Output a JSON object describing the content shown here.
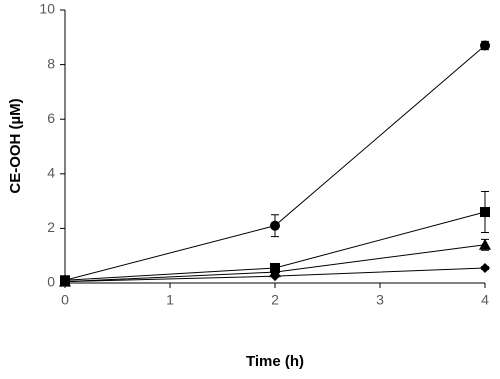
{
  "chart_data": {
    "type": "line",
    "x_label": "Time (h)",
    "y_label": "CE-OOH (µM)",
    "xlim": [
      0,
      4
    ],
    "xticks": [
      0,
      1,
      2,
      3,
      4
    ],
    "ylim": [
      0,
      10
    ],
    "yticks": [
      0,
      2,
      4,
      6,
      8,
      10
    ],
    "grid": false,
    "series": [
      {
        "marker": "circle",
        "color": "#000000",
        "x": [
          0,
          2,
          4
        ],
        "values": [
          0.1,
          2.1,
          8.7
        ],
        "errors": [
          0,
          0.4,
          0.15
        ]
      },
      {
        "marker": "square",
        "color": "#000000",
        "x": [
          0,
          2,
          4
        ],
        "values": [
          0.1,
          0.55,
          2.6
        ],
        "errors": [
          0,
          0.05,
          0.75
        ]
      },
      {
        "marker": "triangle",
        "color": "#000000",
        "x": [
          0,
          2,
          4
        ],
        "values": [
          0.05,
          0.4,
          1.4
        ],
        "errors": [
          0,
          0.05,
          0.2
        ]
      },
      {
        "marker": "diamond",
        "color": "#000000",
        "x": [
          0,
          2,
          4
        ],
        "values": [
          0.05,
          0.25,
          0.55
        ],
        "errors": [
          0,
          0.03,
          0.05
        ]
      }
    ]
  }
}
